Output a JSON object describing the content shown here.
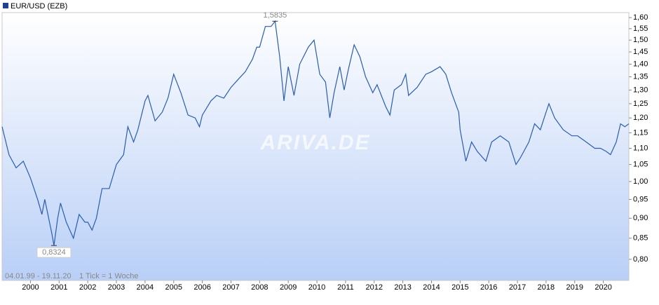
{
  "chart_data": {
    "type": "line",
    "watermark": "ARIVA.DE",
    "period": "04.01.99 - 19.11.20",
    "tick_note": "1 Tick = 1 Woche",
    "log_scale": true,
    "grid": false,
    "legend": "top-left",
    "x": [
      1999.01,
      1999.25,
      1999.5,
      1999.75,
      2000.0,
      2000.25,
      2000.4,
      2000.5,
      2000.75,
      2000.82,
      2000.95,
      2001.05,
      2001.25,
      2001.5,
      2001.7,
      2001.9,
      2002.0,
      2002.15,
      2002.3,
      2002.5,
      2002.75,
      2003.0,
      2003.25,
      2003.4,
      2003.6,
      2003.75,
      2004.0,
      2004.1,
      2004.35,
      2004.6,
      2004.8,
      2005.0,
      2005.25,
      2005.5,
      2005.75,
      2005.9,
      2006.0,
      2006.3,
      2006.5,
      2006.75,
      2007.0,
      2007.25,
      2007.5,
      2007.75,
      2007.9,
      2008.0,
      2008.2,
      2008.4,
      2008.54,
      2008.7,
      2008.85,
      2009.0,
      2009.2,
      2009.4,
      2009.7,
      2009.9,
      2010.1,
      2010.3,
      2010.45,
      2010.6,
      2010.8,
      2010.95,
      2011.1,
      2011.3,
      2011.5,
      2011.7,
      2011.95,
      2012.1,
      2012.4,
      2012.55,
      2012.7,
      2012.95,
      2013.1,
      2013.2,
      2013.5,
      2013.8,
      2014.0,
      2014.3,
      2014.5,
      2014.7,
      2014.95,
      2015.0,
      2015.2,
      2015.4,
      2015.6,
      2015.9,
      2016.1,
      2016.4,
      2016.7,
      2016.95,
      2017.1,
      2017.4,
      2017.6,
      2017.8,
      2018.0,
      2018.1,
      2018.3,
      2018.6,
      2018.9,
      2019.1,
      2019.4,
      2019.7,
      2019.9,
      2020.1,
      2020.25,
      2020.45,
      2020.6,
      2020.75,
      2020.89
    ],
    "series": [
      {
        "name": "EUR/USD (EZB)",
        "color": "#2a5db0",
        "values": [
          1.17,
          1.08,
          1.04,
          1.06,
          1.01,
          0.95,
          0.91,
          0.95,
          0.86,
          0.8324,
          0.9,
          0.94,
          0.89,
          0.85,
          0.91,
          0.89,
          0.89,
          0.87,
          0.9,
          0.98,
          0.98,
          1.05,
          1.08,
          1.17,
          1.12,
          1.16,
          1.26,
          1.28,
          1.19,
          1.22,
          1.27,
          1.36,
          1.29,
          1.21,
          1.2,
          1.17,
          1.21,
          1.26,
          1.28,
          1.27,
          1.31,
          1.34,
          1.37,
          1.42,
          1.47,
          1.47,
          1.56,
          1.56,
          1.5835,
          1.43,
          1.26,
          1.39,
          1.28,
          1.4,
          1.47,
          1.5,
          1.36,
          1.33,
          1.2,
          1.29,
          1.39,
          1.3,
          1.38,
          1.48,
          1.43,
          1.35,
          1.29,
          1.32,
          1.24,
          1.21,
          1.3,
          1.32,
          1.36,
          1.28,
          1.31,
          1.36,
          1.37,
          1.39,
          1.36,
          1.29,
          1.22,
          1.16,
          1.06,
          1.12,
          1.09,
          1.06,
          1.12,
          1.14,
          1.12,
          1.05,
          1.07,
          1.12,
          1.18,
          1.16,
          1.22,
          1.25,
          1.2,
          1.16,
          1.14,
          1.14,
          1.12,
          1.1,
          1.1,
          1.09,
          1.08,
          1.12,
          1.18,
          1.17,
          1.18
        ]
      }
    ],
    "annotations": [
      {
        "x": 2008.54,
        "value": 1.5835,
        "label": "1,5835"
      },
      {
        "x": 2000.82,
        "value": 0.8324,
        "label": "0,8324"
      }
    ],
    "xlim": [
      1999.01,
      2020.89
    ],
    "xticks": [
      2000,
      2001,
      2002,
      2003,
      2004,
      2005,
      2006,
      2007,
      2008,
      2009,
      2010,
      2011,
      2012,
      2013,
      2014,
      2015,
      2016,
      2017,
      2018,
      2019,
      2020
    ],
    "ylim": [
      0.753,
      1.623
    ],
    "yticks": [
      {
        "value": 0.8,
        "label": "0,80"
      },
      {
        "value": 0.85,
        "label": "0,85"
      },
      {
        "value": 0.9,
        "label": "0,90"
      },
      {
        "value": 0.95,
        "label": "0,95"
      },
      {
        "value": 1.0,
        "label": "1,00"
      },
      {
        "value": 1.05,
        "label": "1,05"
      },
      {
        "value": 1.1,
        "label": "1,10"
      },
      {
        "value": 1.15,
        "label": "1,15"
      },
      {
        "value": 1.2,
        "label": "1,20"
      },
      {
        "value": 1.25,
        "label": "1,25"
      },
      {
        "value": 1.3,
        "label": "1,30"
      },
      {
        "value": 1.35,
        "label": "1,35"
      },
      {
        "value": 1.4,
        "label": "1,40"
      },
      {
        "value": 1.45,
        "label": "1,45"
      },
      {
        "value": 1.5,
        "label": "1,50"
      },
      {
        "value": 1.55,
        "label": "1,55"
      },
      {
        "value": 1.6,
        "label": "1,60"
      }
    ]
  }
}
